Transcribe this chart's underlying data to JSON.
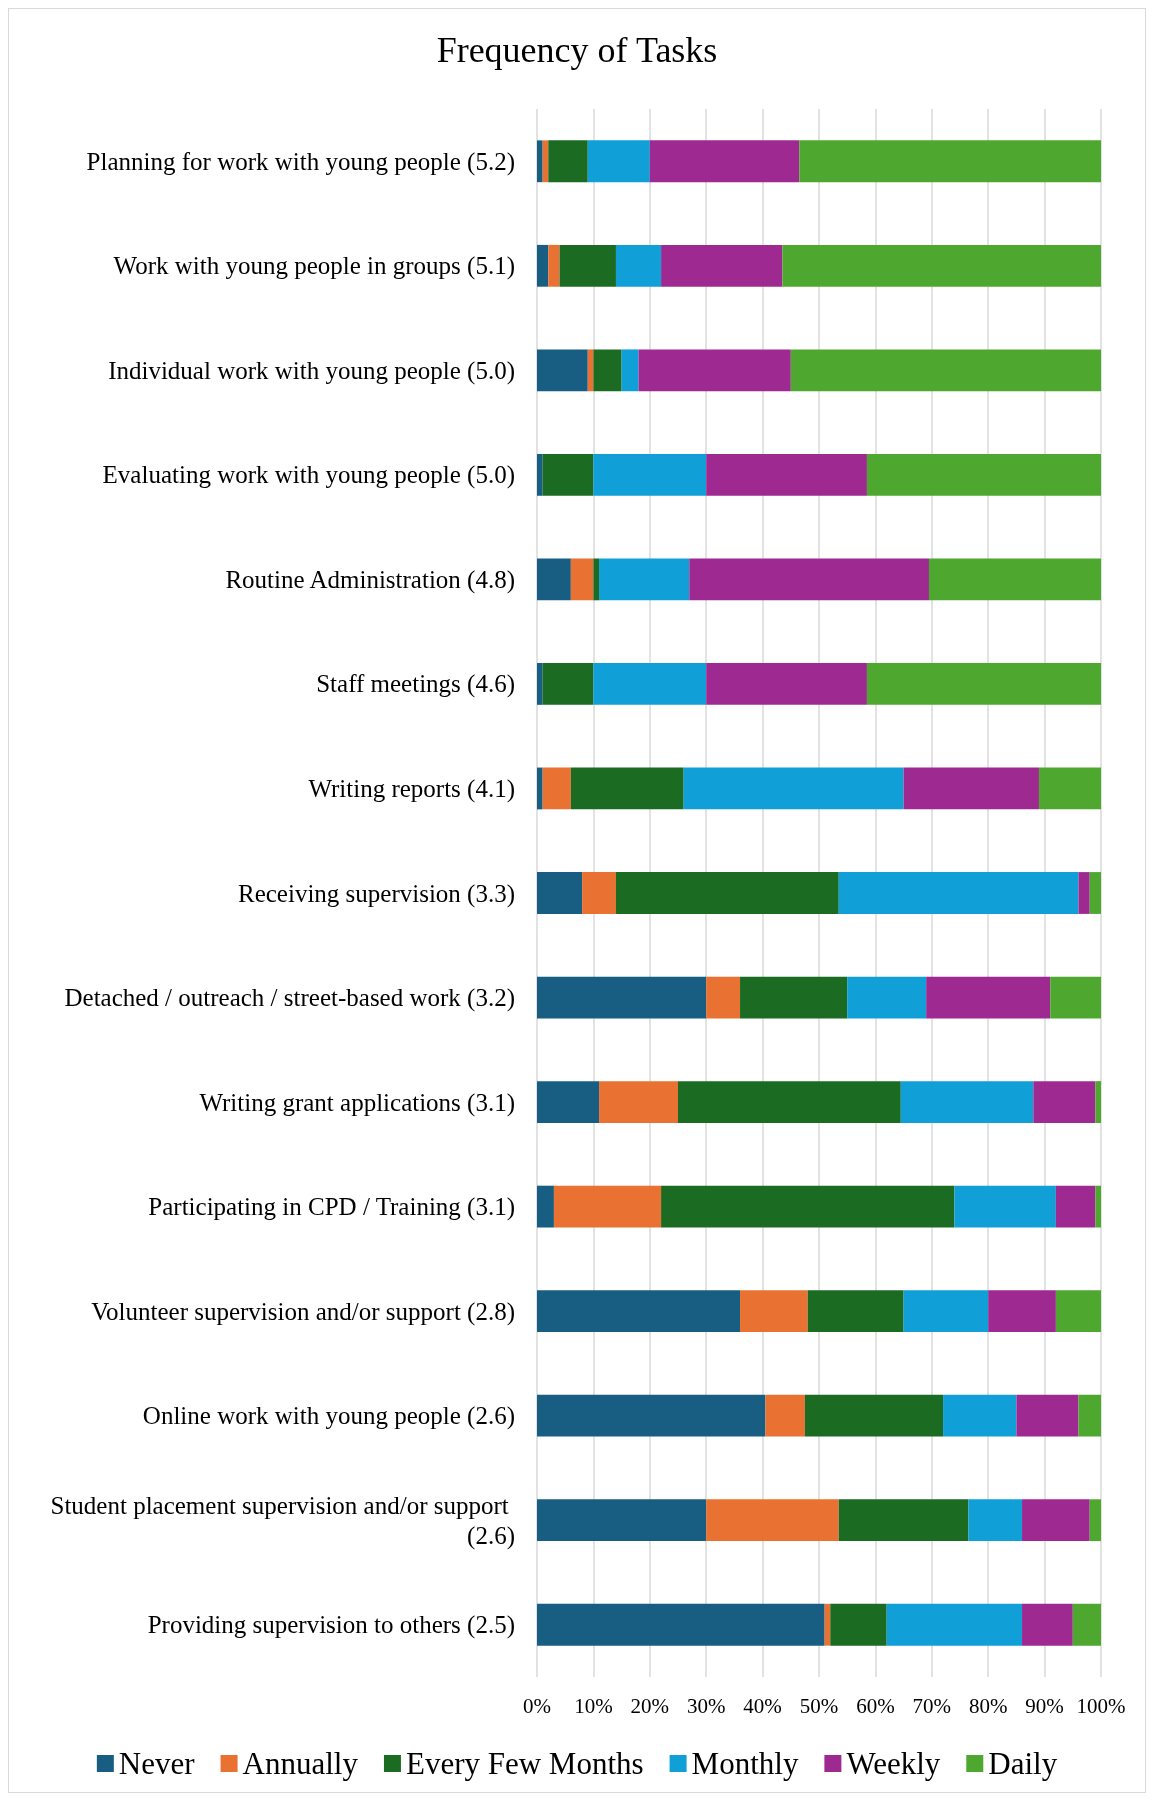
{
  "chart_data": {
    "type": "bar",
    "title": "Frequency of Tasks",
    "orientation": "horizontal",
    "stacked": true,
    "categories": [
      "Planning for work with young people (5.2)",
      "Work with young people in groups (5.1)",
      "Individual work with young people (5.0)",
      "Evaluating work with young people (5.0)",
      "Routine Administration (4.8)",
      "Staff meetings (4.6)",
      "Writing reports (4.1)",
      "Receiving supervision (3.3)",
      "Detached / outreach / street-based work (3.2)",
      "Writing grant applications (3.1)",
      "Participating in CPD / Training (3.1)",
      "Volunteer supervision and/or support (2.8)",
      "Online work with young people (2.6)",
      "Student placement supervision and/or support (2.6)",
      "Providing supervision to others (2.5)"
    ],
    "series": [
      {
        "name": "Never",
        "color": "#175e82",
        "values": [
          1,
          2,
          9,
          1,
          6,
          1,
          1,
          8,
          30,
          11,
          3,
          36,
          40.5,
          30,
          51
        ]
      },
      {
        "name": "Annually",
        "color": "#e97132",
        "values": [
          1,
          2,
          1,
          0,
          4,
          0,
          5,
          6,
          6,
          14,
          19,
          12,
          7,
          23.5,
          1
        ]
      },
      {
        "name": "Every Few Months",
        "color": "#1b6b22",
        "values": [
          7,
          10,
          5,
          9,
          1,
          9,
          20,
          39.5,
          19,
          39.5,
          52,
          17,
          24.5,
          23,
          10
        ]
      },
      {
        "name": "Monthly",
        "color": "#109fd6",
        "values": [
          11,
          8,
          3,
          20,
          16,
          20,
          39,
          42.5,
          14,
          23.5,
          18,
          15,
          13,
          9.5,
          24
        ]
      },
      {
        "name": "Weekly",
        "color": "#9e2a91",
        "values": [
          26.5,
          21.5,
          27,
          28.5,
          42.5,
          28.5,
          24,
          2,
          22,
          11,
          7,
          12,
          11,
          12,
          9
        ]
      },
      {
        "name": "Daily",
        "color": "#4ea72e",
        "values": [
          53.5,
          56.5,
          55,
          41.5,
          30.5,
          41.5,
          11,
          2,
          9,
          1,
          1,
          8,
          4,
          2,
          5
        ]
      }
    ],
    "xlim": [
      0,
      100
    ],
    "xticks": [
      {
        "value": 0,
        "label": "0%"
      },
      {
        "value": 10,
        "label": "10%"
      },
      {
        "value": 20,
        "label": "20%"
      },
      {
        "value": 30,
        "label": "30%"
      },
      {
        "value": 40,
        "label": "40%"
      },
      {
        "value": 50,
        "label": "50%"
      },
      {
        "value": 60,
        "label": "60%"
      },
      {
        "value": 70,
        "label": "70%"
      },
      {
        "value": 80,
        "label": "80%"
      },
      {
        "value": 90,
        "label": "90%"
      },
      {
        "value": 100,
        "label": "100%"
      }
    ],
    "grid": "x",
    "legend": "bottom"
  }
}
